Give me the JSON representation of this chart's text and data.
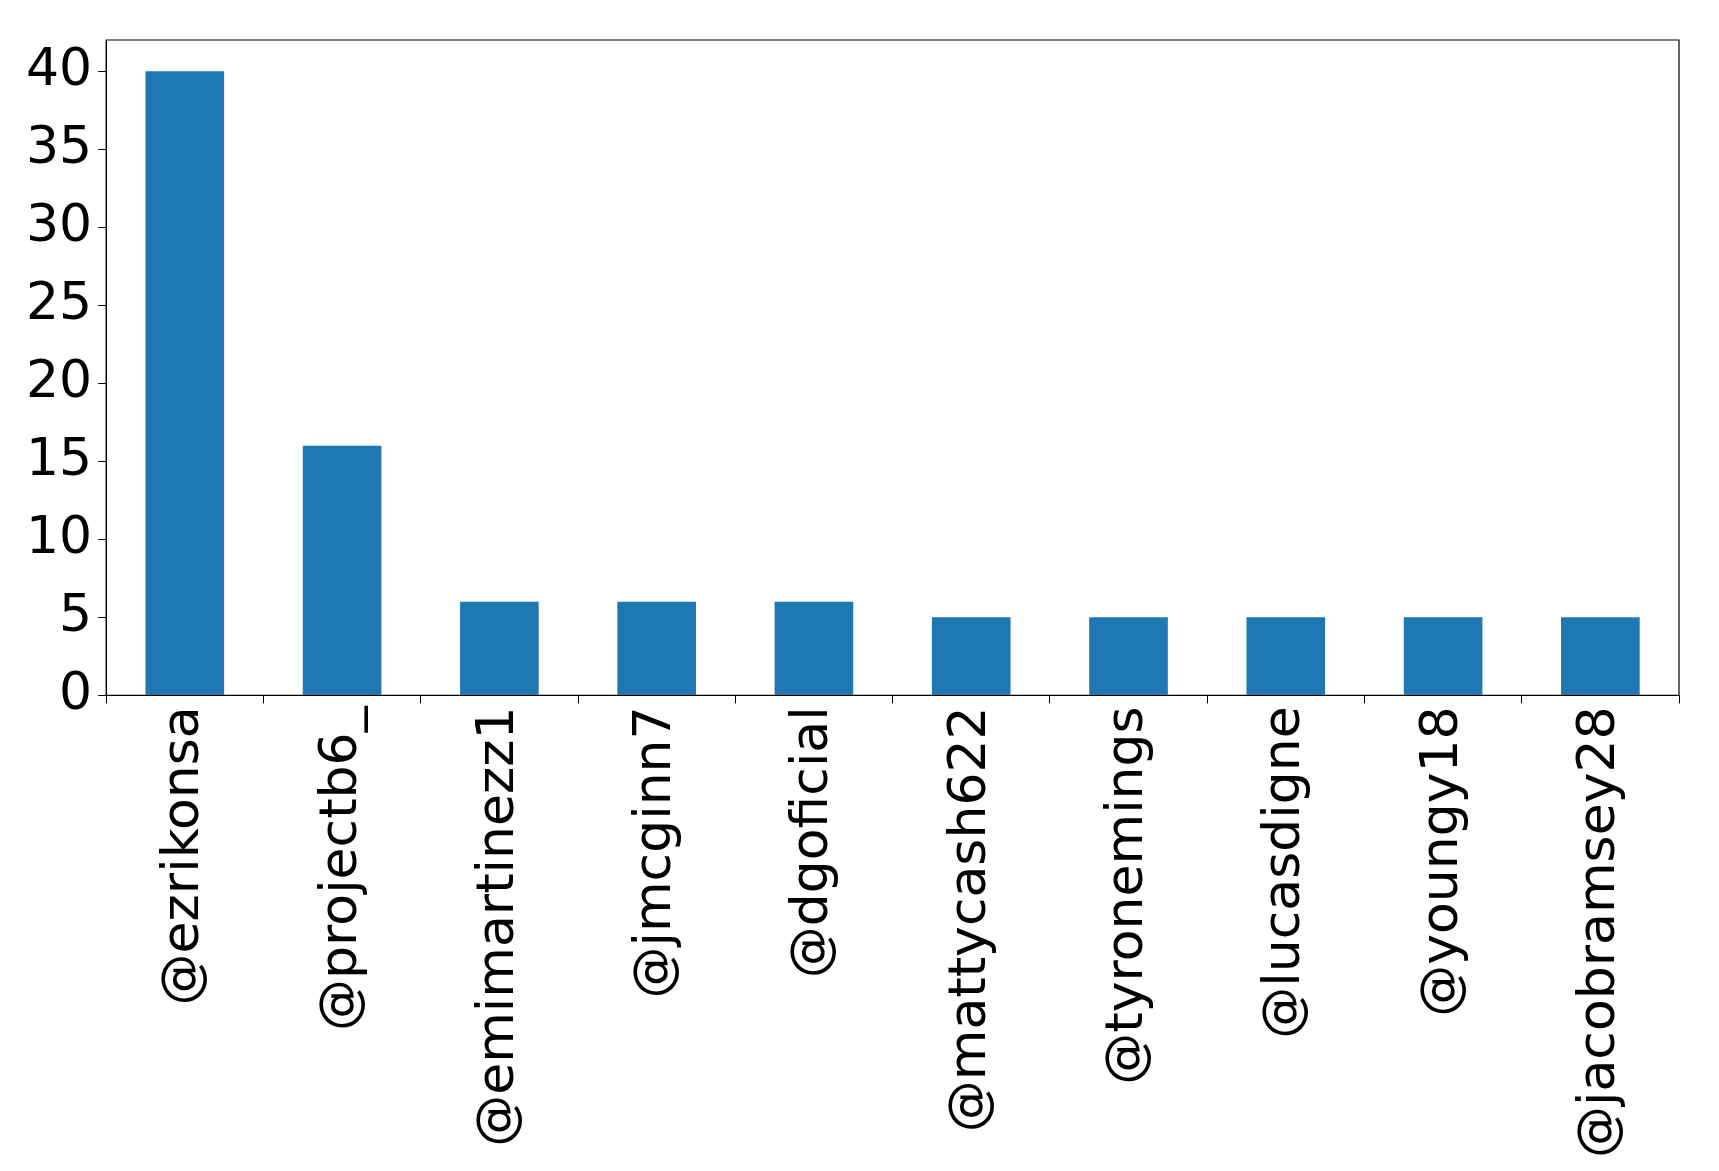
{
  "chart_data": {
    "type": "bar",
    "categories": [
      "@ezrikonsa",
      "@projectb6_",
      "@emimartinezz1",
      "@jmcginn7",
      "@dgoficial",
      "@mattycash622",
      "@tyronemings",
      "@lucasdigne",
      "@youngy18",
      "@jacobramsey28"
    ],
    "values": [
      40,
      16,
      6,
      6,
      6,
      5,
      5,
      5,
      5,
      5
    ],
    "color": "#1f77b4",
    "ylim": [
      0,
      42
    ],
    "yticks": [
      0,
      5,
      10,
      15,
      20,
      25,
      30,
      35,
      40
    ],
    "grid": false,
    "legend": false
  }
}
